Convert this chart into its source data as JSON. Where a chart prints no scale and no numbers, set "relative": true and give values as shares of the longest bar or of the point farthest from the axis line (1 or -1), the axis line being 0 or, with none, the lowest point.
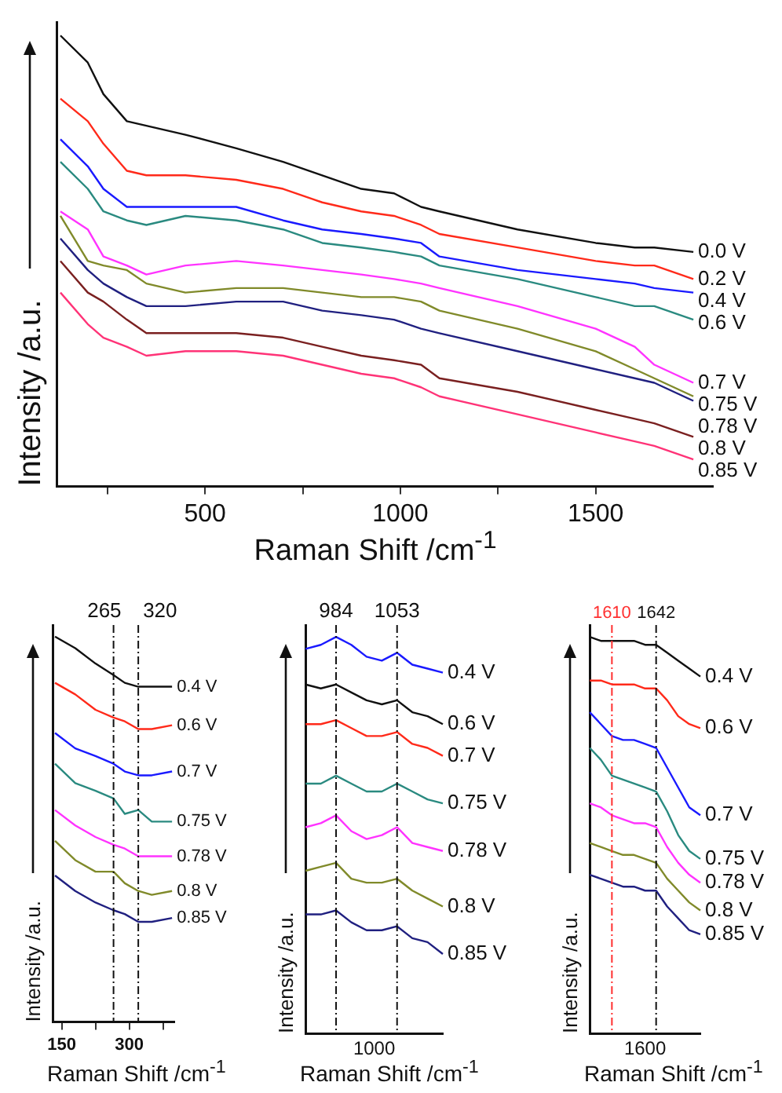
{
  "chart_data": [
    {
      "type": "line",
      "xlabel": "Raman Shift /cm$^{-1}$",
      "ylabel": "Intensity /a.u.",
      "relative": true,
      "xlim": [
        120,
        1800
      ],
      "xticks": [
        {
          "value": 250,
          "label": null
        },
        500,
        {
          "value": 750,
          "label": null
        },
        1000,
        {
          "value": 1250,
          "label": null
        },
        1500
      ],
      "x": [
        130,
        200,
        240,
        300,
        350,
        450,
        580,
        700,
        800,
        900,
        984,
        1053,
        1100,
        1300,
        1500,
        1600,
        1650,
        1750
      ],
      "series": [
        {
          "name": "0.0 V",
          "color": "#111111",
          "values": [
            1.0,
            0.94,
            0.87,
            0.81,
            0.8,
            0.78,
            0.75,
            0.72,
            0.69,
            0.66,
            0.65,
            0.62,
            0.61,
            0.57,
            0.54,
            0.53,
            0.53,
            0.52
          ]
        },
        {
          "name": "0.2 V",
          "color": "#ff2a1a",
          "values": [
            0.86,
            0.81,
            0.76,
            0.7,
            0.69,
            0.69,
            0.68,
            0.66,
            0.63,
            0.61,
            0.6,
            0.58,
            0.56,
            0.53,
            0.5,
            0.49,
            0.49,
            0.46
          ]
        },
        {
          "name": "0.4 V",
          "color": "#1a1aff",
          "values": [
            0.77,
            0.71,
            0.66,
            0.62,
            0.62,
            0.62,
            0.62,
            0.59,
            0.57,
            0.56,
            0.55,
            0.54,
            0.51,
            0.48,
            0.46,
            0.45,
            0.44,
            0.43
          ]
        },
        {
          "name": "0.6 V",
          "color": "#2a8a80",
          "values": [
            0.72,
            0.66,
            0.61,
            0.59,
            0.58,
            0.6,
            0.59,
            0.57,
            0.54,
            0.53,
            0.52,
            0.51,
            0.49,
            0.46,
            0.42,
            0.4,
            0.4,
            0.37
          ]
        },
        {
          "name": "0.7 V",
          "color": "#ff33ff",
          "values": [
            0.61,
            0.57,
            0.51,
            0.49,
            0.47,
            0.49,
            0.5,
            0.49,
            0.48,
            0.47,
            0.46,
            0.45,
            0.44,
            0.4,
            0.35,
            0.31,
            0.27,
            0.23
          ]
        },
        {
          "name": "0.75 V",
          "color": "#808a2a",
          "values": [
            0.6,
            0.5,
            0.49,
            0.48,
            0.45,
            0.43,
            0.44,
            0.44,
            0.43,
            0.42,
            0.42,
            0.41,
            0.39,
            0.35,
            0.3,
            0.26,
            0.24,
            0.2
          ]
        },
        {
          "name": "0.78 V",
          "color": "#202080",
          "values": [
            0.55,
            0.48,
            0.45,
            0.42,
            0.4,
            0.4,
            0.41,
            0.41,
            0.39,
            0.38,
            0.37,
            0.35,
            0.34,
            0.3,
            0.26,
            0.24,
            0.23,
            0.19
          ]
        },
        {
          "name": "0.8 V",
          "color": "#7a2020",
          "values": [
            0.5,
            0.43,
            0.41,
            0.37,
            0.34,
            0.34,
            0.34,
            0.33,
            0.31,
            0.29,
            0.28,
            0.27,
            0.24,
            0.21,
            0.17,
            0.15,
            0.14,
            0.11
          ]
        },
        {
          "name": "0.85 V",
          "color": "#ff3377",
          "values": [
            0.43,
            0.36,
            0.33,
            0.31,
            0.29,
            0.3,
            0.3,
            0.29,
            0.27,
            0.25,
            0.24,
            0.22,
            0.2,
            0.16,
            0.12,
            0.1,
            0.09,
            0.06
          ]
        }
      ]
    },
    {
      "type": "line",
      "xlabel": "Raman Shift /cm$^{-1}$",
      "ylabel": "Intensity /a.u.",
      "relative": true,
      "xlim": [
        130,
        400
      ],
      "xticks": [
        150,
        {
          "value": 225,
          "label": null
        },
        300,
        {
          "value": 375,
          "label": null
        }
      ],
      "x": [
        135,
        180,
        225,
        265,
        290,
        320,
        350,
        395
      ],
      "ref_lines": [
        {
          "axis": "x",
          "value": 265,
          "label": "265",
          "color": "#111111",
          "line_style": "dashed"
        },
        {
          "axis": "x",
          "value": 320,
          "label": "320",
          "color": "#111111",
          "line_style": "dashed"
        }
      ],
      "series": [
        {
          "name": "0.4 V",
          "color": "#111111",
          "values": [
            1.0,
            0.97,
            0.93,
            0.9,
            0.88,
            0.87,
            0.87,
            0.87
          ]
        },
        {
          "name": "0.6 V",
          "color": "#ff2a1a",
          "values": [
            0.88,
            0.85,
            0.81,
            0.79,
            0.78,
            0.76,
            0.76,
            0.77
          ]
        },
        {
          "name": "0.7 V",
          "color": "#1a1aff",
          "values": [
            0.75,
            0.71,
            0.69,
            0.67,
            0.65,
            0.64,
            0.64,
            0.65
          ]
        },
        {
          "name": "0.75 V",
          "color": "#2a8a80",
          "values": [
            0.67,
            0.62,
            0.6,
            0.58,
            0.54,
            0.55,
            0.52,
            0.52
          ]
        },
        {
          "name": "0.78 V",
          "color": "#ff33ff",
          "values": [
            0.55,
            0.51,
            0.48,
            0.46,
            0.45,
            0.43,
            0.43,
            0.43
          ]
        },
        {
          "name": "0.8 V",
          "color": "#808a2a",
          "values": [
            0.47,
            0.42,
            0.39,
            0.39,
            0.36,
            0.34,
            0.33,
            0.34
          ]
        },
        {
          "name": "0.85 V",
          "color": "#202080",
          "values": [
            0.38,
            0.34,
            0.31,
            0.29,
            0.28,
            0.26,
            0.26,
            0.27
          ]
        }
      ]
    },
    {
      "type": "line",
      "xlabel": "Raman Shift /cm$^{-1}$",
      "ylabel": "Intensity /a.u.",
      "relative": true,
      "annotations": [
        "1000"
      ],
      "categories": [
        null,
        null,
        "984",
        null,
        null,
        null,
        "1053",
        null,
        null,
        null
      ],
      "ref_lines": [
        {
          "axis": "x",
          "value": "984",
          "color": "#111111",
          "line_style": "dashed"
        },
        {
          "axis": "x",
          "value": "1053",
          "color": "#111111",
          "line_style": "dashed"
        }
      ],
      "series": [
        {
          "name": "0.4 V",
          "color": "#1a1aff",
          "values": [
            0.97,
            0.98,
            1.0,
            0.98,
            0.95,
            0.94,
            0.96,
            0.93,
            0.92,
            0.91
          ]
        },
        {
          "name": "0.6 V",
          "color": "#111111",
          "values": [
            0.88,
            0.87,
            0.88,
            0.86,
            0.84,
            0.83,
            0.84,
            0.81,
            0.8,
            0.78
          ]
        },
        {
          "name": "0.7 V",
          "color": "#ff2a1a",
          "values": [
            0.78,
            0.78,
            0.79,
            0.77,
            0.75,
            0.75,
            0.76,
            0.73,
            0.72,
            0.7
          ]
        },
        {
          "name": "0.75 V",
          "color": "#2a8a80",
          "values": [
            0.63,
            0.63,
            0.65,
            0.63,
            0.61,
            0.61,
            0.63,
            0.61,
            0.59,
            0.58
          ]
        },
        {
          "name": "0.78 V",
          "color": "#ff33ff",
          "values": [
            0.52,
            0.53,
            0.55,
            0.51,
            0.49,
            0.5,
            0.52,
            0.48,
            0.47,
            0.46
          ]
        },
        {
          "name": "0.8 V",
          "color": "#808a2a",
          "values": [
            0.41,
            0.42,
            0.43,
            0.39,
            0.38,
            0.38,
            0.39,
            0.36,
            0.34,
            0.32
          ]
        },
        {
          "name": "0.85 V",
          "color": "#202080",
          "values": [
            0.3,
            0.3,
            0.31,
            0.28,
            0.26,
            0.26,
            0.27,
            0.24,
            0.23,
            0.2
          ]
        }
      ]
    },
    {
      "type": "line",
      "xlabel": "Raman Shift /cm$^{-1}$",
      "ylabel": "Intensity /a.u.",
      "relative": true,
      "annotations": [
        "1600"
      ],
      "categories": [
        null,
        null,
        "1610",
        null,
        null,
        null,
        "1642",
        null,
        null,
        null,
        null
      ],
      "ref_lines": [
        {
          "axis": "x",
          "value": "1610",
          "color": "#ff3030",
          "line_style": "dashed"
        },
        {
          "axis": "x",
          "value": "1642",
          "color": "#111111",
          "line_style": "dashed"
        }
      ],
      "series": [
        {
          "name": "0.4 V",
          "color": "#111111",
          "values": [
            1.0,
            0.99,
            0.99,
            0.99,
            0.99,
            0.98,
            0.98,
            0.96,
            0.94,
            0.92,
            0.9
          ]
        },
        {
          "name": "0.6 V",
          "color": "#ff2a1a",
          "values": [
            0.89,
            0.89,
            0.88,
            0.88,
            0.88,
            0.87,
            0.87,
            0.84,
            0.8,
            0.78,
            0.77
          ]
        },
        {
          "name": "0.7 V",
          "color": "#1a1aff",
          "values": [
            0.81,
            0.78,
            0.75,
            0.74,
            0.74,
            0.73,
            0.72,
            0.67,
            0.62,
            0.57,
            0.55
          ]
        },
        {
          "name": "0.75 V",
          "color": "#2a8a80",
          "values": [
            0.72,
            0.69,
            0.65,
            0.64,
            0.63,
            0.62,
            0.61,
            0.56,
            0.5,
            0.46,
            0.44
          ]
        },
        {
          "name": "0.78 V",
          "color": "#ff33ff",
          "values": [
            0.58,
            0.57,
            0.55,
            0.54,
            0.53,
            0.53,
            0.52,
            0.47,
            0.43,
            0.4,
            0.38
          ]
        },
        {
          "name": "0.8 V",
          "color": "#808a2a",
          "values": [
            0.48,
            0.47,
            0.46,
            0.45,
            0.45,
            0.44,
            0.43,
            0.39,
            0.36,
            0.33,
            0.31
          ]
        },
        {
          "name": "0.85 V",
          "color": "#202080",
          "values": [
            0.4,
            0.39,
            0.38,
            0.37,
            0.37,
            0.36,
            0.36,
            0.32,
            0.29,
            0.26,
            0.25
          ]
        }
      ]
    }
  ]
}
